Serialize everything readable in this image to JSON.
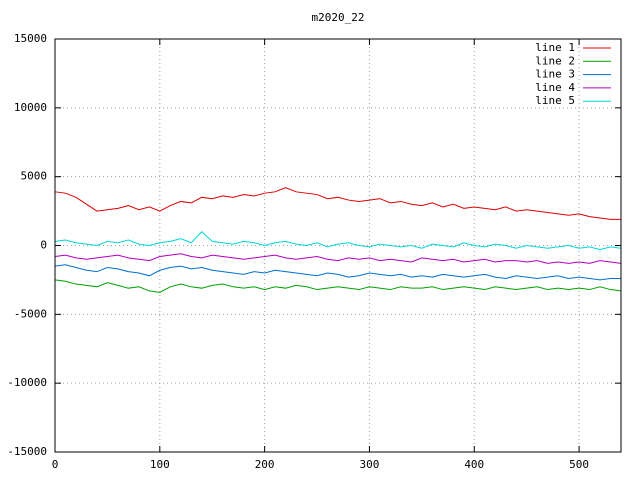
{
  "chart_data": {
    "type": "line",
    "title": "m2020_22",
    "x": [
      0,
      10,
      20,
      30,
      40,
      50,
      60,
      70,
      80,
      90,
      100,
      110,
      120,
      130,
      140,
      150,
      160,
      170,
      180,
      190,
      200,
      210,
      220,
      230,
      240,
      250,
      260,
      270,
      280,
      290,
      300,
      310,
      320,
      330,
      340,
      350,
      360,
      370,
      380,
      390,
      400,
      410,
      420,
      430,
      440,
      450,
      460,
      470,
      480,
      490,
      500,
      510,
      520,
      530,
      540
    ],
    "xlim": [
      0,
      540
    ],
    "xticks": [
      0,
      100,
      200,
      300,
      400,
      500
    ],
    "ylim": [
      -15000,
      15000
    ],
    "yticks": [
      -15000,
      -10000,
      -5000,
      0,
      5000,
      10000,
      15000
    ],
    "grid": true,
    "legend": "top-right",
    "series": [
      {
        "name": "line 1",
        "color": "#dd0000",
        "values": [
          3900,
          3800,
          3500,
          3000,
          2500,
          2600,
          2700,
          2900,
          2600,
          2800,
          2500,
          2900,
          3200,
          3100,
          3500,
          3400,
          3600,
          3500,
          3700,
          3600,
          3800,
          3900,
          4200,
          3900,
          3800,
          3700,
          3400,
          3500,
          3300,
          3200,
          3300,
          3400,
          3100,
          3200,
          3000,
          2900,
          3100,
          2800,
          3000,
          2700,
          2800,
          2700,
          2600,
          2800,
          2500,
          2600,
          2500,
          2400,
          2300,
          2200,
          2300,
          2100,
          2000,
          1900,
          1900
        ]
      },
      {
        "name": "line 2",
        "color": "#00a000",
        "values": [
          -2500,
          -2600,
          -2800,
          -2900,
          -3000,
          -2700,
          -2900,
          -3100,
          -3000,
          -3300,
          -3400,
          -3000,
          -2800,
          -3000,
          -3100,
          -2900,
          -2800,
          -3000,
          -3100,
          -3000,
          -3200,
          -3000,
          -3100,
          -2900,
          -3000,
          -3200,
          -3100,
          -3000,
          -3100,
          -3200,
          -3000,
          -3100,
          -3200,
          -3000,
          -3100,
          -3100,
          -3000,
          -3200,
          -3100,
          -3000,
          -3100,
          -3200,
          -3000,
          -3100,
          -3200,
          -3100,
          -3000,
          -3200,
          -3100,
          -3200,
          -3100,
          -3200,
          -3000,
          -3200,
          -3300
        ]
      },
      {
        "name": "line 3",
        "color": "#0070d0",
        "values": [
          -1500,
          -1400,
          -1600,
          -1800,
          -1900,
          -1600,
          -1700,
          -1900,
          -2000,
          -2200,
          -1800,
          -1600,
          -1500,
          -1700,
          -1600,
          -1800,
          -1900,
          -2000,
          -2100,
          -1900,
          -2000,
          -1800,
          -1900,
          -2000,
          -2100,
          -2200,
          -2000,
          -2100,
          -2300,
          -2200,
          -2000,
          -2100,
          -2200,
          -2100,
          -2300,
          -2200,
          -2300,
          -2100,
          -2200,
          -2300,
          -2200,
          -2100,
          -2300,
          -2400,
          -2200,
          -2300,
          -2400,
          -2300,
          -2200,
          -2400,
          -2300,
          -2400,
          -2500,
          -2400,
          -2400
        ]
      },
      {
        "name": "line 4",
        "color": "#b000c0",
        "values": [
          -800,
          -700,
          -900,
          -1000,
          -900,
          -800,
          -700,
          -900,
          -1000,
          -1100,
          -800,
          -700,
          -600,
          -800,
          -900,
          -700,
          -800,
          -900,
          -1000,
          -900,
          -800,
          -700,
          -900,
          -1000,
          -900,
          -800,
          -1000,
          -1100,
          -900,
          -1000,
          -900,
          -1100,
          -1000,
          -1100,
          -1200,
          -900,
          -1000,
          -1100,
          -1000,
          -1200,
          -1100,
          -1000,
          -1200,
          -1100,
          -1100,
          -1200,
          -1100,
          -1300,
          -1200,
          -1300,
          -1200,
          -1300,
          -1100,
          -1200,
          -1300
        ]
      },
      {
        "name": "line 5",
        "color": "#00d8d8",
        "values": [
          300,
          400,
          200,
          100,
          0,
          300,
          200,
          400,
          100,
          0,
          200,
          300,
          500,
          200,
          1000,
          300,
          200,
          100,
          300,
          200,
          0,
          200,
          300,
          100,
          0,
          200,
          -100,
          100,
          200,
          0,
          -100,
          100,
          0,
          -100,
          0,
          -200,
          100,
          0,
          -100,
          200,
          0,
          -100,
          100,
          0,
          -200,
          0,
          -100,
          -200,
          -100,
          0,
          -200,
          -100,
          -300,
          -100,
          -200
        ]
      }
    ]
  }
}
